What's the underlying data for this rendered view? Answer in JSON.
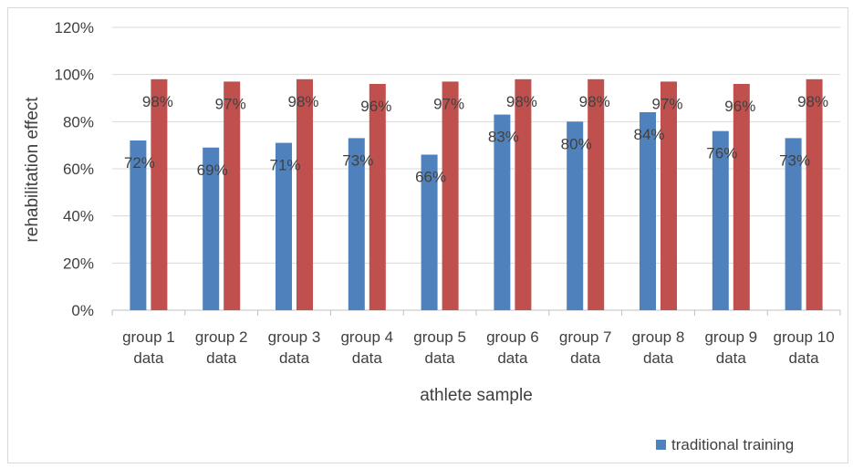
{
  "chart_data": {
    "type": "bar",
    "title": "",
    "xlabel": "athlete sample",
    "ylabel": "rehabilitation effect",
    "ylim": [
      0,
      1.2
    ],
    "yticks": [
      0,
      0.2,
      0.4,
      0.6,
      0.8,
      1.0,
      1.2
    ],
    "ytick_labels": [
      "0%",
      "20%",
      "40%",
      "60%",
      "80%",
      "100%",
      "120%"
    ],
    "grid": true,
    "legend_position": "bottom-right",
    "categories": [
      [
        "group 1",
        "data"
      ],
      [
        "group 2",
        "data"
      ],
      [
        "group 3",
        "data"
      ],
      [
        "group 4",
        "data"
      ],
      [
        "group 5",
        "data"
      ],
      [
        "group 6",
        "data"
      ],
      [
        "group 7",
        "data"
      ],
      [
        "group 8",
        "data"
      ],
      [
        "group 9",
        "data"
      ],
      [
        "group 10",
        "data"
      ]
    ],
    "series": [
      {
        "name": "traditional training",
        "color": "#4f81bd",
        "values": [
          0.72,
          0.69,
          0.71,
          0.73,
          0.66,
          0.83,
          0.8,
          0.84,
          0.76,
          0.73
        ],
        "labels": [
          "72%",
          "69%",
          "71%",
          "73%",
          "66%",
          "83%",
          "80%",
          "84%",
          "76%",
          "73%"
        ]
      },
      {
        "color": "#c0504d",
        "values": [
          0.98,
          0.97,
          0.98,
          0.96,
          0.97,
          0.98,
          0.98,
          0.97,
          0.96,
          0.98
        ],
        "labels": [
          "98%",
          "97%",
          "98%",
          "96%",
          "97%",
          "98%",
          "98%",
          "97%",
          "96%",
          "98%"
        ]
      }
    ]
  }
}
